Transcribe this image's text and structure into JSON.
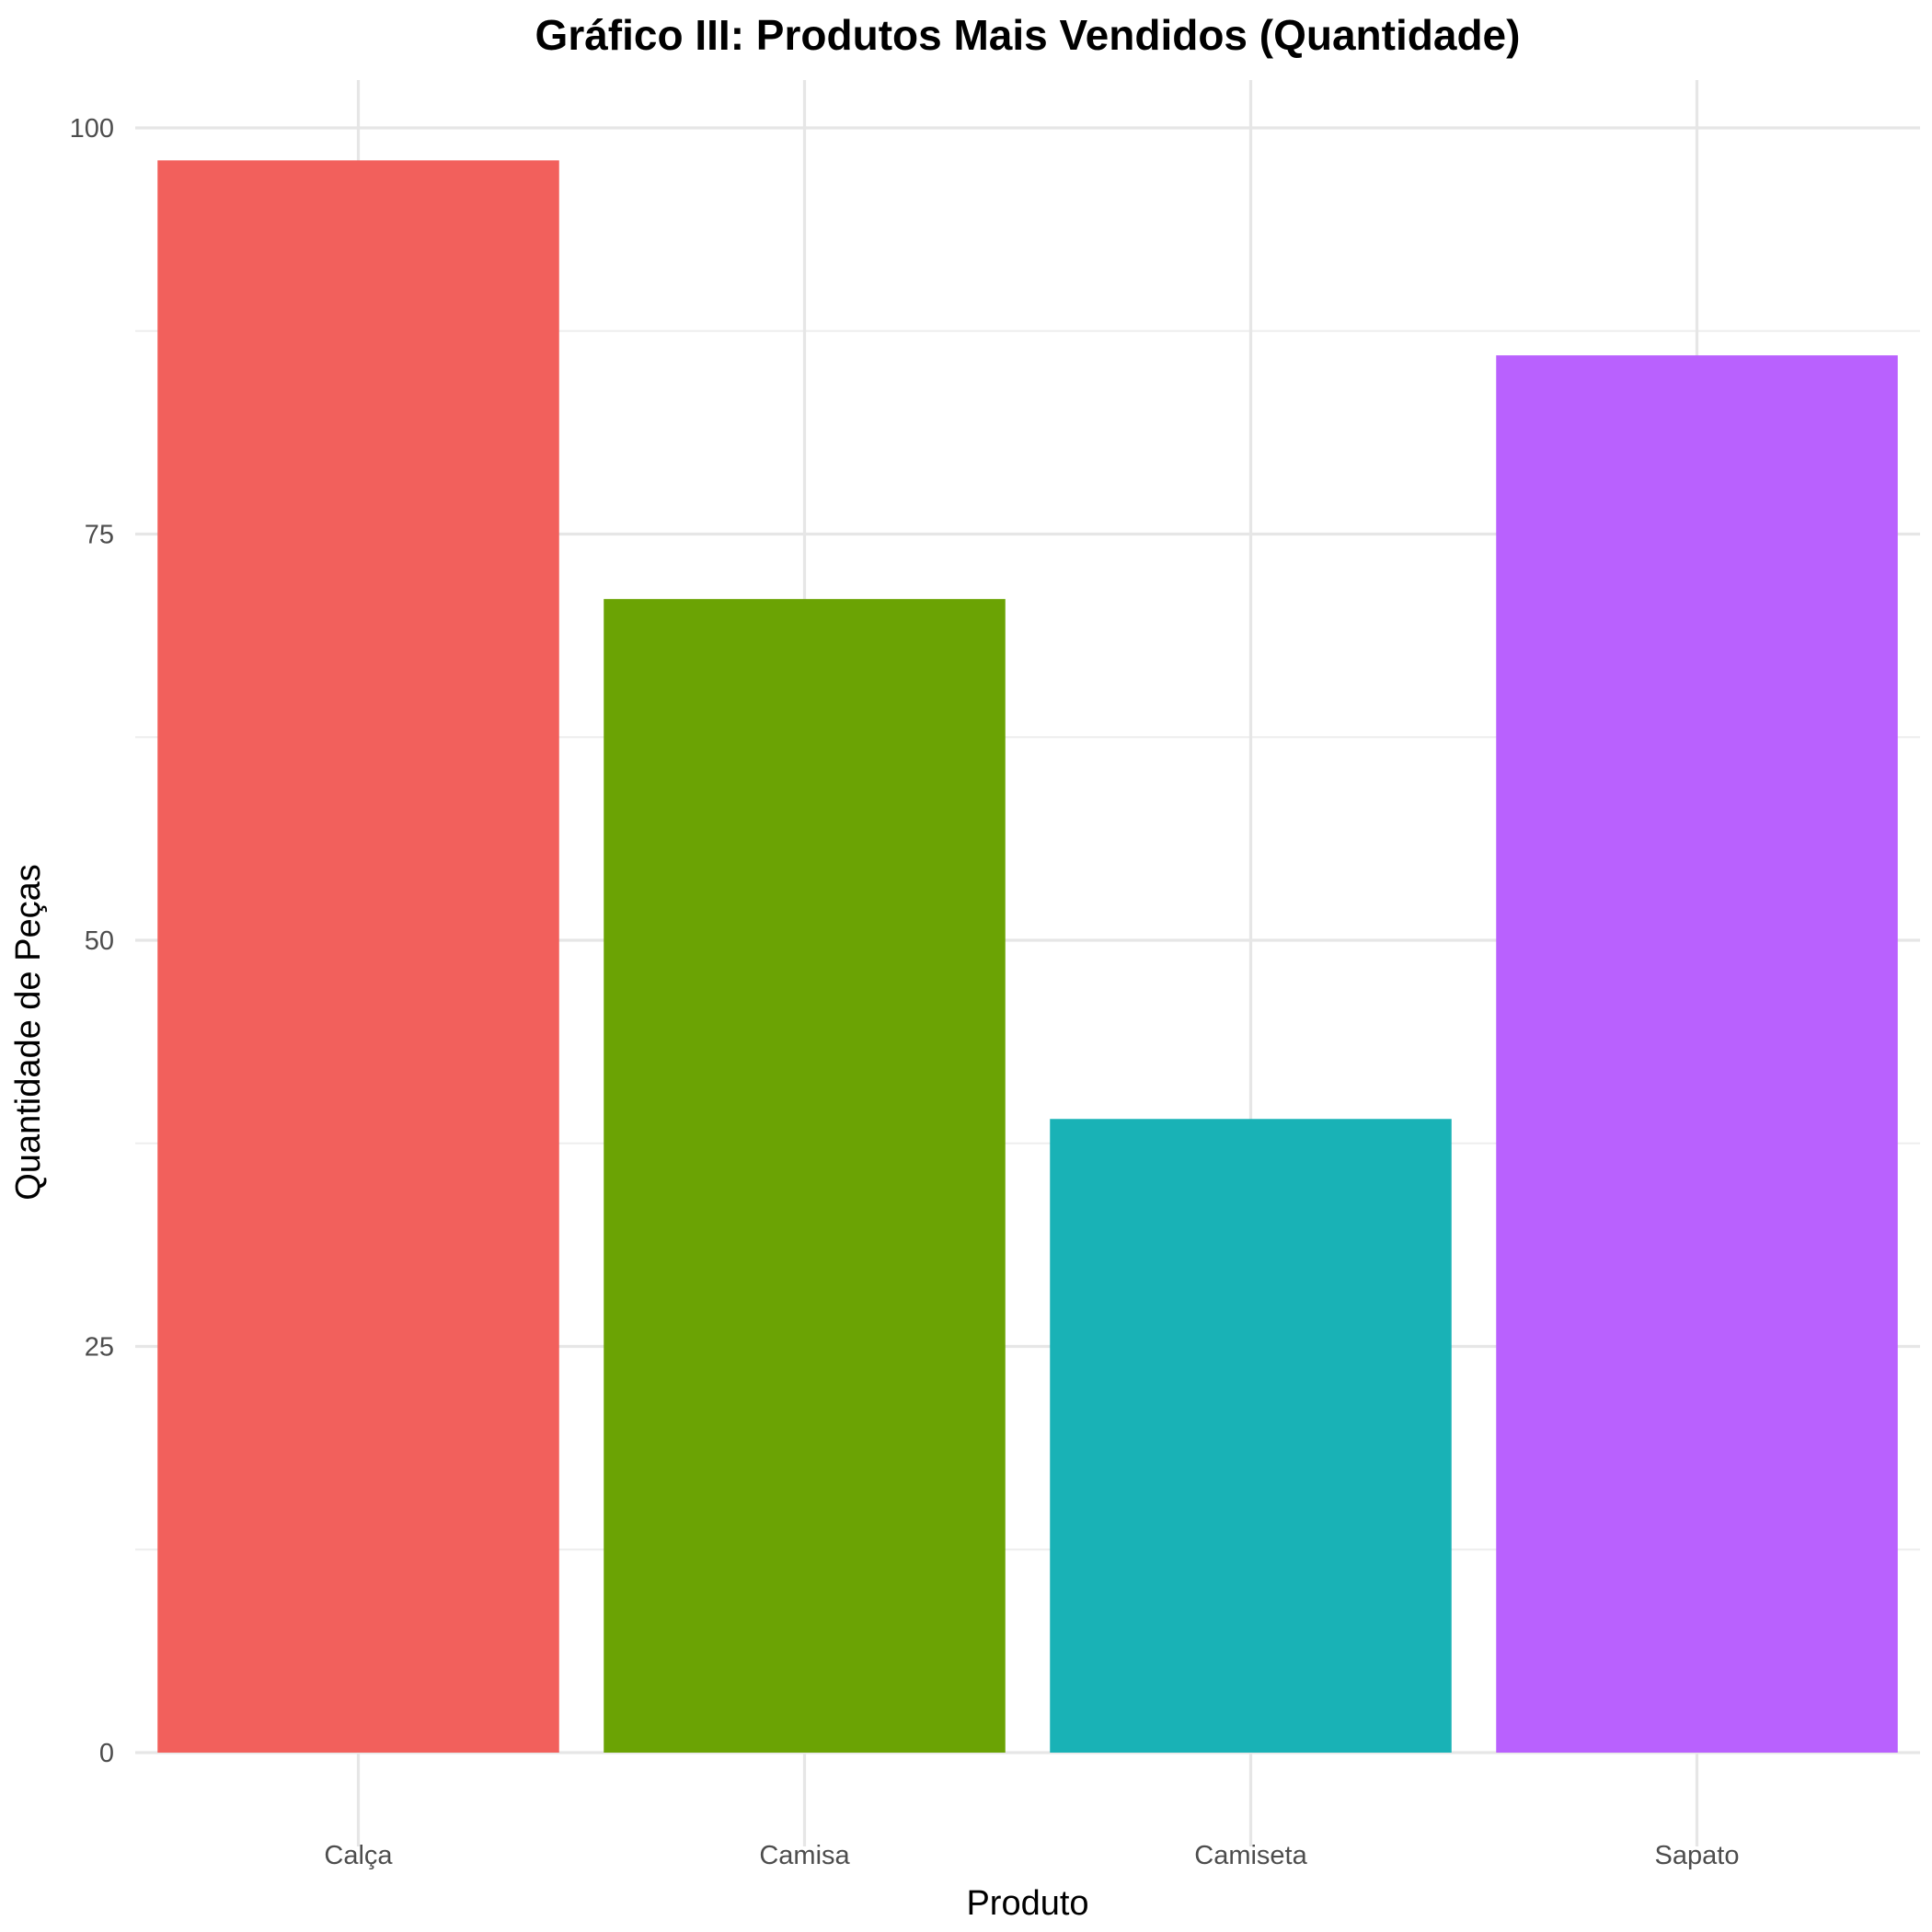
{
  "chart_data": {
    "type": "bar",
    "title": "Gráfico III: Produtos Mais Vendidos (Quantidade)",
    "xlabel": "Produto",
    "ylabel": "Quantidade de Peças",
    "categories": [
      "Calça",
      "Camisa",
      "Camiseta",
      "Sapato"
    ],
    "values": [
      98,
      71,
      39,
      86
    ],
    "colors": [
      "#F2605C",
      "#6BA304",
      "#19B2B6",
      "#B961FE"
    ],
    "ylim": [
      0,
      102.9
    ],
    "yticks": [
      "0",
      "25",
      "50",
      "75",
      "100"
    ],
    "grid": true,
    "legend": "none"
  }
}
